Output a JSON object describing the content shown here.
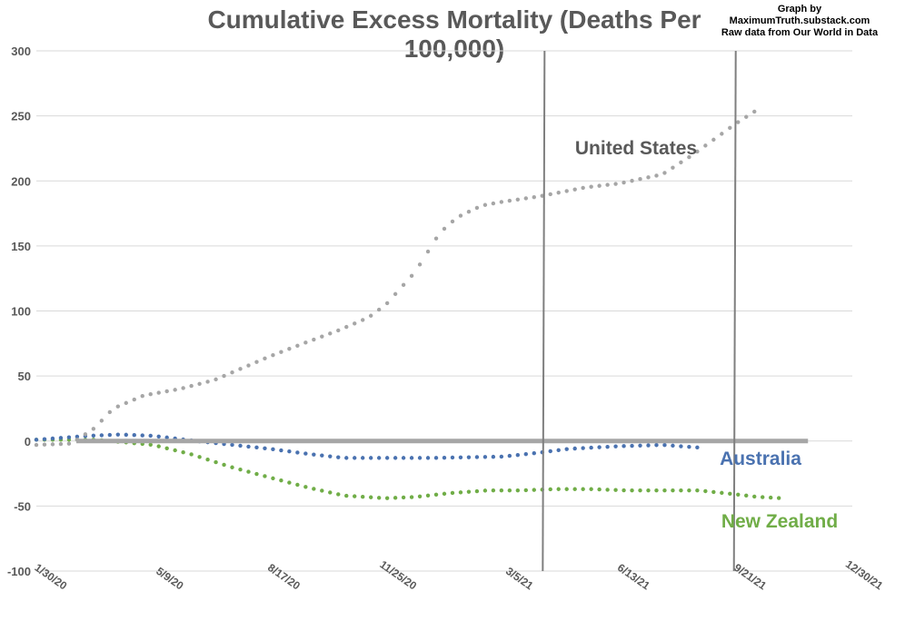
{
  "chart_data": {
    "type": "scatter",
    "title": "Cumulative Excess Mortality (Deaths Per 100,000)",
    "credit": [
      "Graph by",
      "MaximumTruth.substack.com",
      "Raw data from Our World in Data"
    ],
    "xlabel": "",
    "ylabel": "",
    "x_range": [
      "2020-01-30",
      "2021-12-30"
    ],
    "ylim": [
      -100,
      300
    ],
    "x_ticks": [
      "1/30/20",
      "5/9/20",
      "8/17/20",
      "11/25/20",
      "3/5/21",
      "6/13/21",
      "9/21/21",
      "12/30/21"
    ],
    "y_ticks": [
      300,
      250,
      200,
      150,
      100,
      50,
      0,
      -50,
      -100
    ],
    "grid": "horizontal",
    "legend": "inline labels",
    "vertical_markers": [
      "2021-04-10",
      "2021-09-21"
    ],
    "zero_line_end": "2021-11-22",
    "series": [
      {
        "name": "United States",
        "color": "#a6a6a6",
        "label_color": "#595959",
        "points": [
          [
            "2020-01-30",
            -3
          ],
          [
            "2020-02-29",
            -2
          ],
          [
            "2020-03-20",
            10
          ],
          [
            "2020-04-05",
            25
          ],
          [
            "2020-05-01",
            35
          ],
          [
            "2020-06-01",
            40
          ],
          [
            "2020-07-01",
            47
          ],
          [
            "2020-08-17",
            65
          ],
          [
            "2020-09-15",
            75
          ],
          [
            "2020-10-15",
            85
          ],
          [
            "2020-11-10",
            95
          ],
          [
            "2020-11-25",
            105
          ],
          [
            "2020-12-20",
            130
          ],
          [
            "2021-01-10",
            160
          ],
          [
            "2021-01-25",
            172
          ],
          [
            "2021-02-15",
            181
          ],
          [
            "2021-03-05",
            184
          ],
          [
            "2021-04-05",
            188
          ],
          [
            "2021-05-15",
            195
          ],
          [
            "2021-06-13",
            198
          ],
          [
            "2021-07-20",
            205
          ],
          [
            "2021-08-15",
            220
          ],
          [
            "2021-09-21",
            244
          ],
          [
            "2021-10-10",
            255
          ]
        ]
      },
      {
        "name": "Australia",
        "color": "#4a72b0",
        "label_color": "#4a72b0",
        "points": [
          [
            "2020-01-30",
            1
          ],
          [
            "2020-03-15",
            4
          ],
          [
            "2020-04-10",
            5
          ],
          [
            "2020-05-09",
            4
          ],
          [
            "2020-06-15",
            0
          ],
          [
            "2020-08-17",
            -6
          ],
          [
            "2020-09-20",
            -10
          ],
          [
            "2020-10-20",
            -13
          ],
          [
            "2020-11-25",
            -13
          ],
          [
            "2021-01-05",
            -13
          ],
          [
            "2021-03-05",
            -12
          ],
          [
            "2021-04-05",
            -9
          ],
          [
            "2021-05-01",
            -6
          ],
          [
            "2021-06-13",
            -4
          ],
          [
            "2021-07-20",
            -3
          ],
          [
            "2021-08-20",
            -5
          ]
        ]
      },
      {
        "name": "New Zealand",
        "color": "#70ad47",
        "label_color": "#70ad47",
        "points": [
          [
            "2020-01-30",
            1
          ],
          [
            "2020-03-20",
            1
          ],
          [
            "2020-04-15",
            -1
          ],
          [
            "2020-05-09",
            -3
          ],
          [
            "2020-06-10",
            -10
          ],
          [
            "2020-07-15",
            -20
          ],
          [
            "2020-08-17",
            -28
          ],
          [
            "2020-09-20",
            -36
          ],
          [
            "2020-10-20",
            -42
          ],
          [
            "2020-11-25",
            -44
          ],
          [
            "2020-12-20",
            -43
          ],
          [
            "2021-01-20",
            -40
          ],
          [
            "2021-02-20",
            -38
          ],
          [
            "2021-03-20",
            -38
          ],
          [
            "2021-04-20",
            -37
          ],
          [
            "2021-05-20",
            -37
          ],
          [
            "2021-06-20",
            -38
          ],
          [
            "2021-07-20",
            -38
          ],
          [
            "2021-08-20",
            -38
          ],
          [
            "2021-09-21",
            -41
          ],
          [
            "2021-10-10",
            -43
          ],
          [
            "2021-11-01",
            -44
          ]
        ]
      }
    ]
  }
}
